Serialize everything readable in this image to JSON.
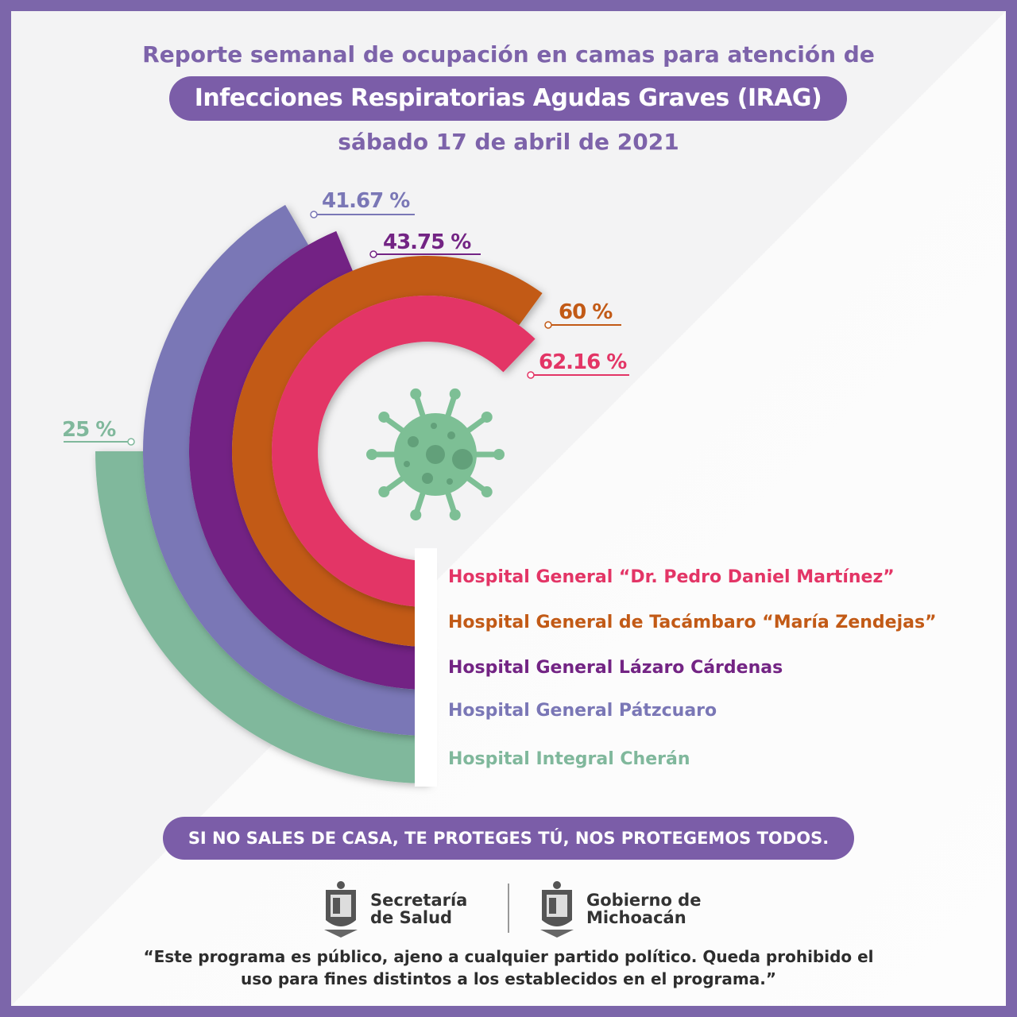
{
  "header": {
    "line1": "Reporte semanal de ocupación en camas para atención de",
    "line2": "Infecciones Respiratorias Agudas Graves (IRAG)",
    "date": "sábado 17 de abril de 2021"
  },
  "chart_data": {
    "type": "radial-bar",
    "unit": "%",
    "series": [
      {
        "name": "Hospital General “Dr. Pedro Daniel Martínez”",
        "value": 62.16,
        "label": "62.16 %",
        "color": "#e33566"
      },
      {
        "name": "Hospital General de Tacámbaro “María Zendejas”",
        "value": 60,
        "label": "60 %",
        "color": "#c25a16"
      },
      {
        "name": "Hospital General Lázaro Cárdenas",
        "value": 43.75,
        "label": "43.75 %",
        "color": "#732484"
      },
      {
        "name": "Hospital General Pátzcuaro",
        "value": 41.67,
        "label": "41.67 %",
        "color": "#7a77b6"
      },
      {
        "name": "Hospital Integral Cherán",
        "value": 25,
        "label": "25 %",
        "color": "#80b89c"
      }
    ],
    "range": [
      0,
      100
    ]
  },
  "icon": "virus-icon",
  "slogan": "SI NO SALES DE CASA, TE PROTEGES TÚ, NOS PROTEGEMOS TODOS.",
  "logos": {
    "salud_line1": "Secretaría",
    "salud_line2": "de Salud",
    "gob_line1": "Gobierno de",
    "gob_line2": "Michoacán"
  },
  "disclaimer": {
    "line1": "“Este programa es público, ajeno a cualquier partido político. Queda prohibido el",
    "line2": "uso para fines distintos a los establecidos en el programa.”"
  }
}
